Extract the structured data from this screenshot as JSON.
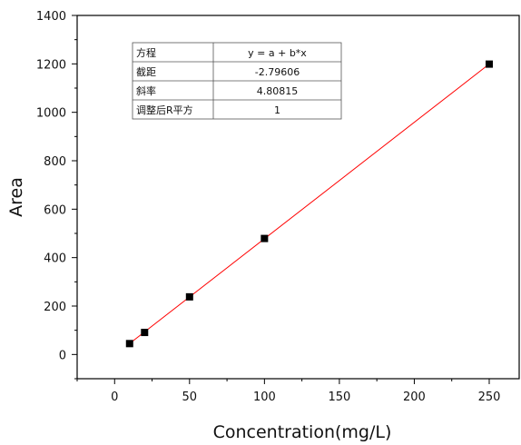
{
  "chart_data": {
    "type": "scatter",
    "xlabel": "Concentration(mg/L)",
    "ylabel": "Area",
    "xlim": [
      -25,
      270
    ],
    "ylim": [
      -100,
      1400
    ],
    "xticks": [
      0,
      50,
      100,
      150,
      200,
      250
    ],
    "yticks": [
      0,
      200,
      400,
      600,
      800,
      1000,
      1200,
      1400
    ],
    "grid": false,
    "points": [
      {
        "x": 10,
        "y": 45
      },
      {
        "x": 20,
        "y": 91
      },
      {
        "x": 50,
        "y": 238
      },
      {
        "x": 100,
        "y": 479
      },
      {
        "x": 250,
        "y": 1199
      }
    ],
    "fit_line": {
      "intercept": -2.79606,
      "slope": 4.80815,
      "x_range": [
        10,
        250
      ],
      "color": "#ff0000"
    },
    "marker_color": "#000000",
    "fit_table": [
      {
        "label": "方程",
        "value": "y = a + b*x"
      },
      {
        "label": "截距",
        "value": "-2.79606"
      },
      {
        "label": "斜率",
        "value": "4.80815"
      },
      {
        "label": "调整后R平方",
        "value": "1"
      }
    ]
  }
}
